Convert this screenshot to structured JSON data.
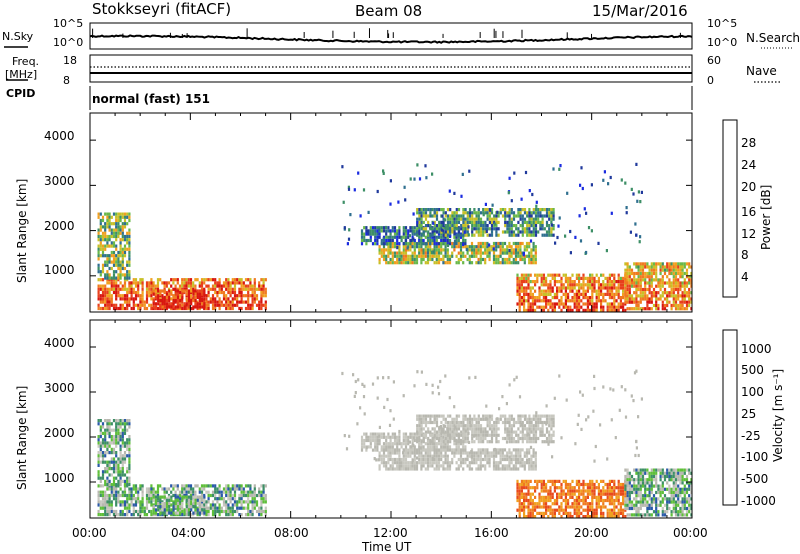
{
  "header": {
    "title": "Stokkseyri (fitACF)",
    "beam": "Beam 08",
    "date": "15/Mar/2016"
  },
  "noise_panel": {
    "left_label": "N.Sky",
    "right_label": "N.Search",
    "left_ticks": [
      "10^5",
      "10^0"
    ],
    "right_ticks": [
      "10^5",
      "10^0"
    ]
  },
  "freq_panel": {
    "left_label": "Freq.",
    "left_unit": "[MHz]",
    "left_ticks": [
      "18",
      "8"
    ],
    "right_label": "Nave",
    "right_ticks": [
      "60",
      "0"
    ]
  },
  "cpid": {
    "label": "CPID",
    "value": "normal (fast) 151"
  },
  "x_axis": {
    "label": "Time UT",
    "ticks": [
      "00:00",
      "04:00",
      "08:00",
      "12:00",
      "16:00",
      "20:00",
      "00:00"
    ]
  },
  "colors": {
    "power": [
      "#1a2be0",
      "#203a9c",
      "#2f6f8f",
      "#3d8f66",
      "#6ab84a",
      "#c8c028",
      "#f0a020",
      "#f07a20",
      "#e8401c",
      "#d8160f"
    ],
    "velocity": [
      "#1a2be0",
      "#2a5aa8",
      "#3d8f66",
      "#5fbf3a",
      "#b8b8b0",
      "#c8c8c0",
      "#f0a020",
      "#f07a20",
      "#e84a1c",
      "#d8160f"
    ]
  },
  "chart_data": [
    {
      "type": "heatmap",
      "name": "power",
      "ylabel": "Slant Range [km]",
      "xlabel": "Time UT",
      "yticks": [
        "1000",
        "2000",
        "3000",
        "4000"
      ],
      "ylim": [
        200,
        4600
      ],
      "xlim": [
        0,
        24
      ],
      "colorbar": {
        "label": "Power [dB]",
        "ticks": [
          "4",
          "8",
          "12",
          "16",
          "20",
          "24",
          "28"
        ],
        "range": [
          0,
          32
        ]
      },
      "regions": [
        {
          "t0": 0.3,
          "t1": 7.0,
          "r0": 250,
          "r1": 950,
          "level": 0.75
        },
        {
          "t0": 0.3,
          "t1": 1.6,
          "r0": 950,
          "r1": 2400,
          "level": 0.45
        },
        {
          "t0": 2.5,
          "t1": 4.6,
          "r0": 300,
          "r1": 700,
          "level": 0.9
        },
        {
          "t0": 11.5,
          "t1": 17.8,
          "r0": 1300,
          "r1": 1750,
          "level": 0.5
        },
        {
          "t0": 10.8,
          "t1": 15.0,
          "r0": 1700,
          "r1": 2100,
          "level": 0.2
        },
        {
          "t0": 13.0,
          "t1": 18.5,
          "r0": 1900,
          "r1": 2500,
          "level": 0.35
        },
        {
          "t0": 17.0,
          "t1": 21.3,
          "r0": 250,
          "r1": 1050,
          "level": 0.7
        },
        {
          "t0": 21.3,
          "t1": 24.0,
          "r0": 250,
          "r1": 1300,
          "level": 0.6
        }
      ]
    },
    {
      "type": "heatmap",
      "name": "velocity",
      "ylabel": "Slant Range [km]",
      "xlabel": "Time UT",
      "yticks": [
        "1000",
        "2000",
        "3000",
        "4000"
      ],
      "ylim": [
        200,
        4600
      ],
      "xlim": [
        0,
        24
      ],
      "colorbar": {
        "label": "Velocity [m s⁻¹]",
        "ticks": [
          "1000",
          "500",
          "100",
          "25",
          "-25",
          "-100",
          "-500",
          "-1000"
        ],
        "range": [
          -1500,
          1500
        ]
      }
    }
  ]
}
